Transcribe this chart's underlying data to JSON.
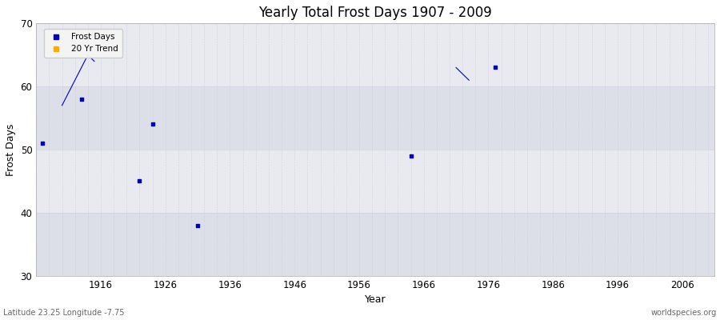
{
  "title": "Yearly Total Frost Days 1907 - 2009",
  "xlabel": "Year",
  "ylabel": "Frost Days",
  "subtitle_left": "Latitude 23.25 Longitude -7.75",
  "subtitle_right": "worldspecies.org",
  "xlim": [
    1906,
    2011
  ],
  "ylim": [
    30,
    70
  ],
  "xticks": [
    1916,
    1926,
    1936,
    1946,
    1956,
    1966,
    1976,
    1986,
    1996,
    2006
  ],
  "yticks": [
    30,
    40,
    50,
    60,
    70
  ],
  "scatter_x": [
    1907,
    1913,
    1922,
    1924,
    1931,
    1964,
    1977
  ],
  "scatter_y": [
    51,
    58,
    45,
    54,
    38,
    49,
    63
  ],
  "line_segments": [
    {
      "x": [
        1910,
        1914
      ],
      "y": [
        57,
        65
      ]
    },
    {
      "x": [
        1914,
        1915
      ],
      "y": [
        65,
        64
      ]
    },
    {
      "x": [
        1971,
        1973
      ],
      "y": [
        63,
        61
      ]
    }
  ],
  "scatter_color": "#0000bb",
  "line_color": "#0000bb",
  "grid_color": "#c8ccd8",
  "plot_bg_color": "#e8eaf0",
  "plot_bg_band_color": "#dddfe8",
  "fig_bg_color": "#ffffff",
  "legend_marker_color": "#0000bb",
  "legend_trend_color": "#ffaa00",
  "point_size": 6,
  "band_ranges": [
    [
      30,
      40
    ],
    [
      50,
      60
    ]
  ]
}
